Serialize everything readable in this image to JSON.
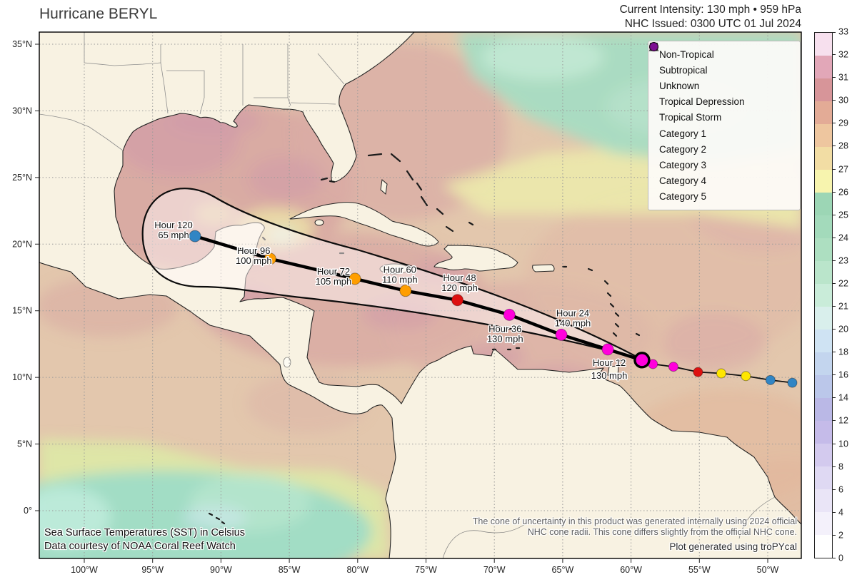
{
  "header": {
    "title": "Hurricane BERYL",
    "intensity_line": "Current Intensity: 130 mph • 959 hPa",
    "issued_line": "NHC Issued: 0300 UTC 01 Jul 2024"
  },
  "legend": {
    "items": [
      {
        "label": "Non-Tropical",
        "marker": "triangle",
        "color": "#ffffff"
      },
      {
        "label": "Subtropical",
        "marker": "square",
        "color": "#ffffff"
      },
      {
        "label": "Unknown",
        "marker": "circle",
        "color": "#ffffff"
      },
      {
        "label": "Tropical Depression",
        "marker": "circle",
        "color": "#80c1ec"
      },
      {
        "label": "Tropical Storm",
        "marker": "circle",
        "color": "#3185c4"
      },
      {
        "label": "Category 1",
        "marker": "circle",
        "color": "#ffe600"
      },
      {
        "label": "Category 2",
        "marker": "circle",
        "color": "#ff9e00"
      },
      {
        "label": "Category 3",
        "marker": "circle",
        "color": "#dd1010"
      },
      {
        "label": "Category 4",
        "marker": "circle",
        "color": "#ff00dc"
      },
      {
        "label": "Category 5",
        "marker": "circle",
        "color": "#7d0d92"
      }
    ]
  },
  "colorbar": {
    "tick_labels": [
      "0",
      "2",
      "4",
      "6",
      "8",
      "10",
      "12",
      "14",
      "16",
      "18",
      "20",
      "21",
      "22",
      "23",
      "24",
      "25",
      "26",
      "27",
      "28",
      "29",
      "30",
      "31",
      "32",
      "33"
    ],
    "segment_colors_bottom_to_top": [
      "#ffffff",
      "#f4f1fb",
      "#eae5f7",
      "#dfd9f3",
      "#d3caee",
      "#c5bbe9",
      "#bab8e6",
      "#bbc7ea",
      "#c3d5ee",
      "#cfe3f3",
      "#d9efec",
      "#c9ecd9",
      "#bae5cb",
      "#addfc1",
      "#a3dabb",
      "#9cd6b5",
      "#f7f4ae",
      "#f2dda4",
      "#eec69f",
      "#e3ab96",
      "#d79599",
      "#e2a7b8",
      "#f7e0ee"
    ]
  },
  "axes": {
    "x_tick_labels": [
      "100°W",
      "95°W",
      "90°W",
      "85°W",
      "80°W",
      "75°W",
      "70°W",
      "65°W",
      "60°W",
      "55°W",
      "50°W"
    ],
    "x_tick_lons_w": [
      100,
      95,
      90,
      85,
      80,
      75,
      70,
      65,
      60,
      55,
      50
    ],
    "y_tick_labels": [
      "35°N",
      "30°N",
      "25°N",
      "20°N",
      "15°N",
      "10°N",
      "5°N",
      "0°"
    ],
    "y_tick_lats_n": [
      35,
      30,
      25,
      20,
      15,
      10,
      5,
      0
    ]
  },
  "chart_data": {
    "type": "hurricane_forecast_track_map",
    "lon_w_range": [
      103.3,
      47.5
    ],
    "lat_n_range": [
      -3.6,
      35.9
    ],
    "status_colors": {
      "non_tropical": "#ffffff",
      "subtropical": "#ffffff",
      "unknown": "#ffffff",
      "tropical_depression": "#80c1ec",
      "tropical_storm": "#3185c4",
      "category1": "#ffe600",
      "category2": "#ff9e00",
      "category3": "#dd1010",
      "category4": "#ff00dc",
      "category5": "#7d0d92"
    },
    "current_position": {
      "lat_n": 11.3,
      "lon_w": 59.2,
      "status": "category4"
    },
    "forecast_points": [
      {
        "hour_label": "Hour 12",
        "intensity_label": "130 mph",
        "lat_n": 12.1,
        "lon_w": 61.7,
        "status": "category4"
      },
      {
        "hour_label": "Hour 24",
        "intensity_label": "140 mph",
        "lat_n": 13.2,
        "lon_w": 65.1,
        "status": "category4"
      },
      {
        "hour_label": "Hour 36",
        "intensity_label": "130 mph",
        "lat_n": 14.7,
        "lon_w": 68.9,
        "status": "category4"
      },
      {
        "hour_label": "Hour 48",
        "intensity_label": "120 mph",
        "lat_n": 15.8,
        "lon_w": 72.7,
        "status": "category3"
      },
      {
        "hour_label": "Hour 60",
        "intensity_label": "110 mph",
        "lat_n": 16.5,
        "lon_w": 76.5,
        "status": "category2"
      },
      {
        "hour_label": "Hour 72",
        "intensity_label": "105 mph",
        "lat_n": 17.4,
        "lon_w": 80.2,
        "status": "category2"
      },
      {
        "hour_label": "Hour 96",
        "intensity_label": "100 mph",
        "lat_n": 18.9,
        "lon_w": 86.4,
        "status": "category2"
      },
      {
        "hour_label": "Hour 120",
        "intensity_label": "65 mph",
        "lat_n": 20.6,
        "lon_w": 91.9,
        "status": "tropical_storm"
      }
    ],
    "observed_points": [
      {
        "lat_n": 11.0,
        "lon_w": 58.4,
        "status": "category4"
      },
      {
        "lat_n": 10.8,
        "lon_w": 56.9,
        "status": "category4"
      },
      {
        "lat_n": 10.4,
        "lon_w": 55.1,
        "status": "category3"
      },
      {
        "lat_n": 10.3,
        "lon_w": 53.4,
        "status": "category1"
      },
      {
        "lat_n": 10.1,
        "lon_w": 51.6,
        "status": "category1"
      },
      {
        "lat_n": 9.8,
        "lon_w": 49.8,
        "status": "tropical_storm"
      },
      {
        "lat_n": 9.6,
        "lon_w": 48.2,
        "status": "tropical_storm"
      }
    ]
  },
  "annotations": {
    "sst_title": "Sea Surface Temperatures (SST) in Celsius",
    "sst_credit": "Data courtesy of NOAA Coral Reef Watch",
    "cone_note_line1": "The cone of uncertainty in this product was generated internally using 2024 official",
    "cone_note_line2": "NHC cone radii. This cone differs slightly from the official NHC cone.",
    "plot_credit": "Plot generated using troPYcal"
  }
}
